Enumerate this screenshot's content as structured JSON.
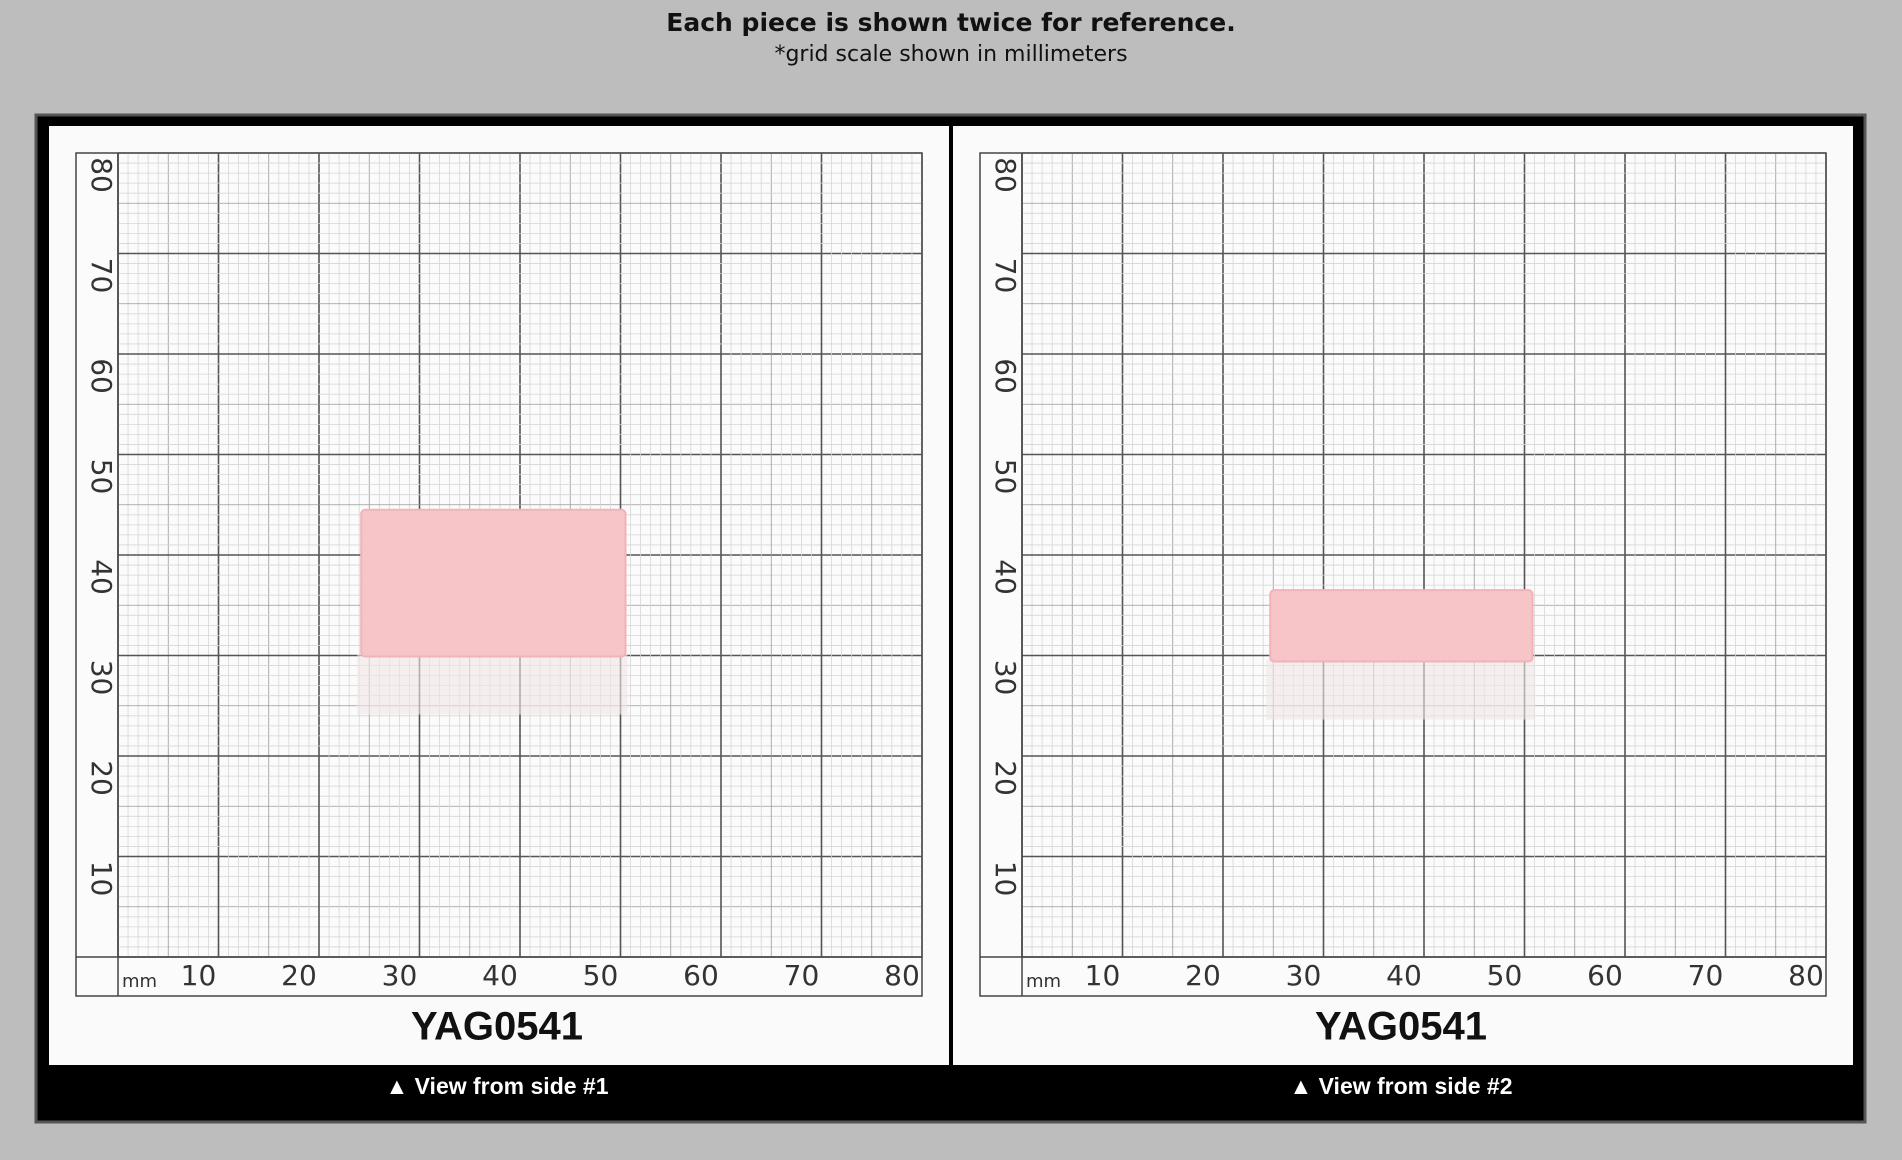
{
  "header": {
    "title": "Each piece is shown twice for reference.",
    "subtitle": "*grid scale shown in millimeters"
  },
  "panels": [
    {
      "unit": "mm",
      "x_labels": [
        "10",
        "20",
        "30",
        "40",
        "50",
        "60",
        "70",
        "80"
      ],
      "y_labels": [
        "10",
        "20",
        "30",
        "40",
        "50",
        "60",
        "70",
        "80"
      ],
      "sample": "YAG0541",
      "caption": "▲ View from side #1"
    },
    {
      "unit": "mm",
      "x_labels": [
        "10",
        "20",
        "30",
        "40",
        "50",
        "60",
        "70",
        "80"
      ],
      "y_labels": [
        "10",
        "20",
        "30",
        "40",
        "50",
        "60",
        "70",
        "80"
      ],
      "sample": "YAG0541",
      "caption": "▲ View from side #2"
    }
  ]
}
